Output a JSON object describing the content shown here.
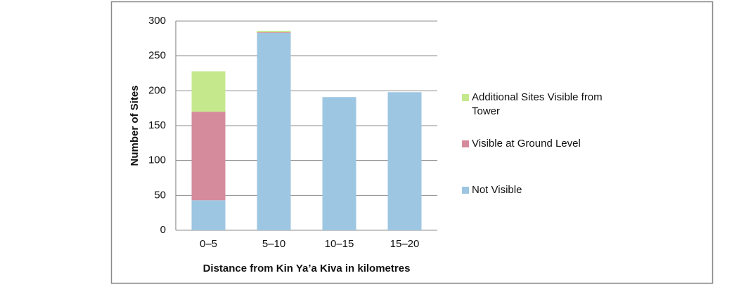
{
  "chart_data": {
    "type": "stacked-bar",
    "categories": [
      "0–5",
      "5–10",
      "10–15",
      "15–20"
    ],
    "series": [
      {
        "name": "Not Visible",
        "color": "#9dc6e2",
        "values": [
          43,
          283,
          191,
          198
        ]
      },
      {
        "name": "Visible at Ground Level",
        "color": "#d58b9c",
        "values": [
          127,
          1,
          0,
          0
        ]
      },
      {
        "name": "Additional Sites Visible from Tower",
        "color": "#c5e88d",
        "values": [
          58,
          2,
          0,
          0
        ]
      }
    ],
    "ylim": [
      0,
      300
    ],
    "yticks": [
      0,
      50,
      100,
      150,
      200,
      250,
      300
    ],
    "grid": true,
    "xlabel": "Distance from Kin Ya’a Kiva in kilometres",
    "ylabel": "Number of Sites",
    "legend": "right"
  }
}
